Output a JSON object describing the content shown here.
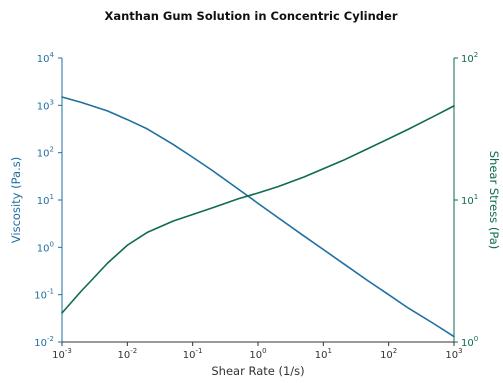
{
  "colors": {
    "viscosity": "#1f6fa0",
    "stress": "#0e6b52",
    "text": "#333333",
    "axis": "#333333"
  },
  "chart_data": {
    "type": "line",
    "title": "Xanthan Gum Solution in Concentric Cylinder",
    "xlabel": "Shear Rate (1/s)",
    "ylabel": "Viscosity (Pa.s)",
    "y2label": "Shear Stress (Pa)",
    "xscale": "log",
    "yscale": "log",
    "y2scale": "log",
    "xlim": [
      0.001,
      1000
    ],
    "ylim": [
      0.01,
      10000
    ],
    "y2lim": [
      1,
      100
    ],
    "x_tick_exponents": [
      "-3",
      "-2",
      "-1",
      "0",
      "1",
      "2",
      "3"
    ],
    "y_tick_exponents": [
      "-2",
      "-1",
      "0",
      "1",
      "2",
      "3",
      "4"
    ],
    "y2_tick_exponents": [
      "0",
      "1",
      "2"
    ],
    "tick_base": "10",
    "grid": false,
    "legend": "none",
    "series": [
      {
        "axis": "left",
        "x": [
          0.001,
          0.002,
          0.005,
          0.01,
          0.02,
          0.05,
          0.1,
          0.2,
          0.5,
          1,
          2,
          5,
          10,
          20,
          50,
          100,
          200,
          500,
          1000
        ],
        "values": [
          1500,
          1150,
          760,
          500,
          320,
          150,
          80,
          42,
          17,
          8.5,
          4.3,
          1.75,
          0.9,
          0.46,
          0.19,
          0.1,
          0.052,
          0.024,
          0.013
        ]
      },
      {
        "axis": "right",
        "x": [
          0.001,
          0.002,
          0.003,
          0.005,
          0.01,
          0.02,
          0.05,
          0.1,
          0.2,
          0.5,
          1,
          2,
          5,
          10,
          20,
          50,
          100,
          200,
          500,
          1000
        ],
        "values": [
          1.6,
          2.3,
          2.8,
          3.6,
          4.8,
          5.9,
          7.1,
          7.9,
          8.8,
          10.2,
          11.2,
          12.4,
          14.5,
          16.6,
          19,
          23.2,
          27,
          31.5,
          39,
          46
        ]
      }
    ]
  }
}
